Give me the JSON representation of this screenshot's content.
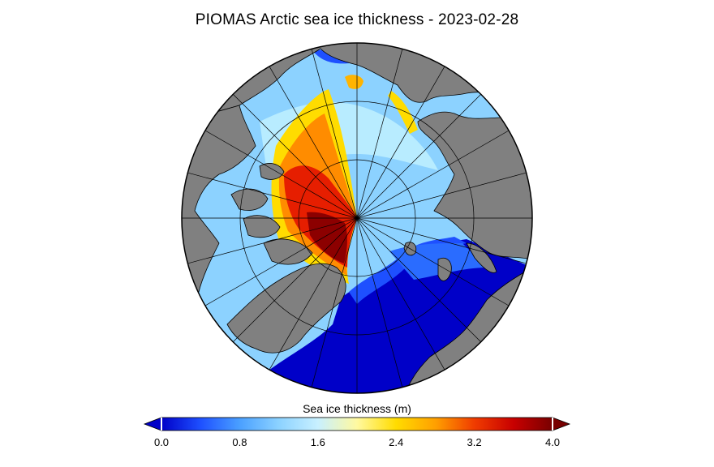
{
  "title": "PIOMAS Arctic sea ice thickness - 2023-02-28",
  "colorbar": {
    "label": "Sea ice thickness (m)",
    "min": 0.0,
    "max": 4.0,
    "ticks": [
      "0.0",
      "0.8",
      "1.6",
      "2.4",
      "3.2",
      "4.0"
    ],
    "tick_values": [
      0.0,
      0.8,
      1.6,
      2.4,
      3.2,
      4.0
    ],
    "extend": "both",
    "stops": [
      {
        "value": 0.0,
        "color": "#0000c8"
      },
      {
        "value": 0.4,
        "color": "#1e50ff"
      },
      {
        "value": 0.8,
        "color": "#4aa0ff"
      },
      {
        "value": 1.2,
        "color": "#8cd2ff"
      },
      {
        "value": 1.6,
        "color": "#c8f0ff"
      },
      {
        "value": 2.0,
        "color": "#fff9a0"
      },
      {
        "value": 2.4,
        "color": "#ffdc00"
      },
      {
        "value": 2.8,
        "color": "#ffa000"
      },
      {
        "value": 3.2,
        "color": "#f03c00"
      },
      {
        "value": 3.6,
        "color": "#c80000"
      },
      {
        "value": 4.0,
        "color": "#780000"
      }
    ],
    "under_color": "#0000c8",
    "over_color": "#780000"
  },
  "map": {
    "projection": "north-polar-stereographic",
    "land_color": "#808080",
    "graticule_meridian_spacing_deg": 15,
    "graticule_circles": 3
  }
}
